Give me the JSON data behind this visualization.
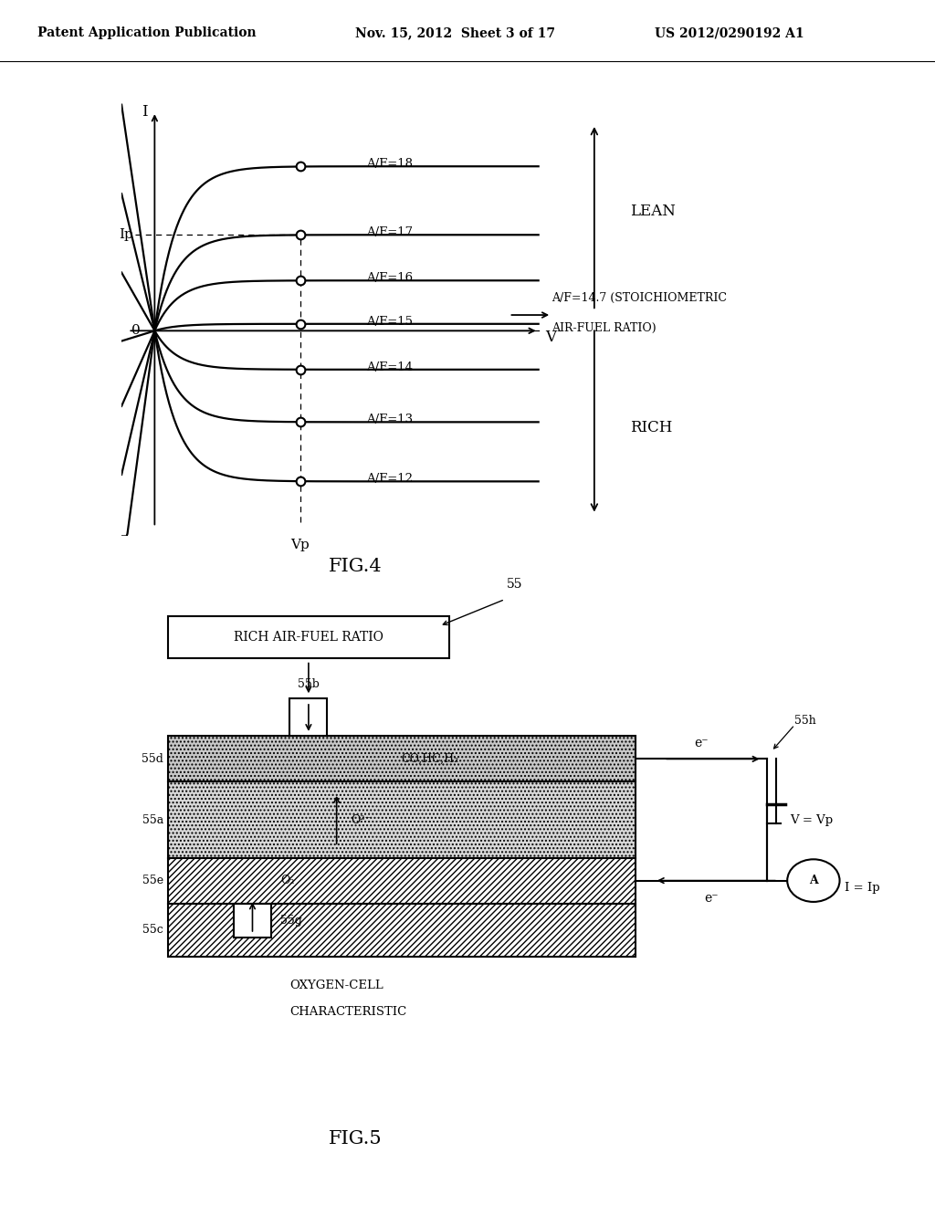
{
  "header_left": "Patent Application Publication",
  "header_mid": "Nov. 15, 2012  Sheet 3 of 17",
  "header_right": "US 2012/0290192 A1",
  "fig4_title": "FIG.4",
  "fig5_title": "FIG.5",
  "af_curves": [
    18,
    17,
    16,
    15,
    14,
    13,
    12
  ],
  "sat_levels": [
    3.6,
    2.1,
    1.1,
    0.15,
    -0.85,
    -2.0,
    -3.3
  ],
  "lean_label": "LEAN",
  "rich_label": "RICH",
  "stoich_line1": "A/F=14.7 (STOICHIOMETRIC",
  "stoich_line2": "AIR-FUEL RATIO)",
  "ip_label": "Ip",
  "vp_label": "Vp",
  "fig5_55": "55",
  "fig5_55a": "55a",
  "fig5_55b": "55b",
  "fig5_55c": "55c",
  "fig5_55d": "55d",
  "fig5_55e": "55e",
  "fig5_55g": "55g",
  "fig5_55h": "55h",
  "rich_box": "RICH AIR-FUEL RATIO",
  "co_label": "CO,HC,H₂",
  "o2_ion": "O²⁻",
  "o2_label": "O₂",
  "e_minus": "e⁻",
  "i_label": "I = Ip",
  "v_label": "V = Vp",
  "oxygen_cell_line1": "OXYGEN-CELL",
  "oxygen_cell_line2": "CHARACTERISTIC"
}
